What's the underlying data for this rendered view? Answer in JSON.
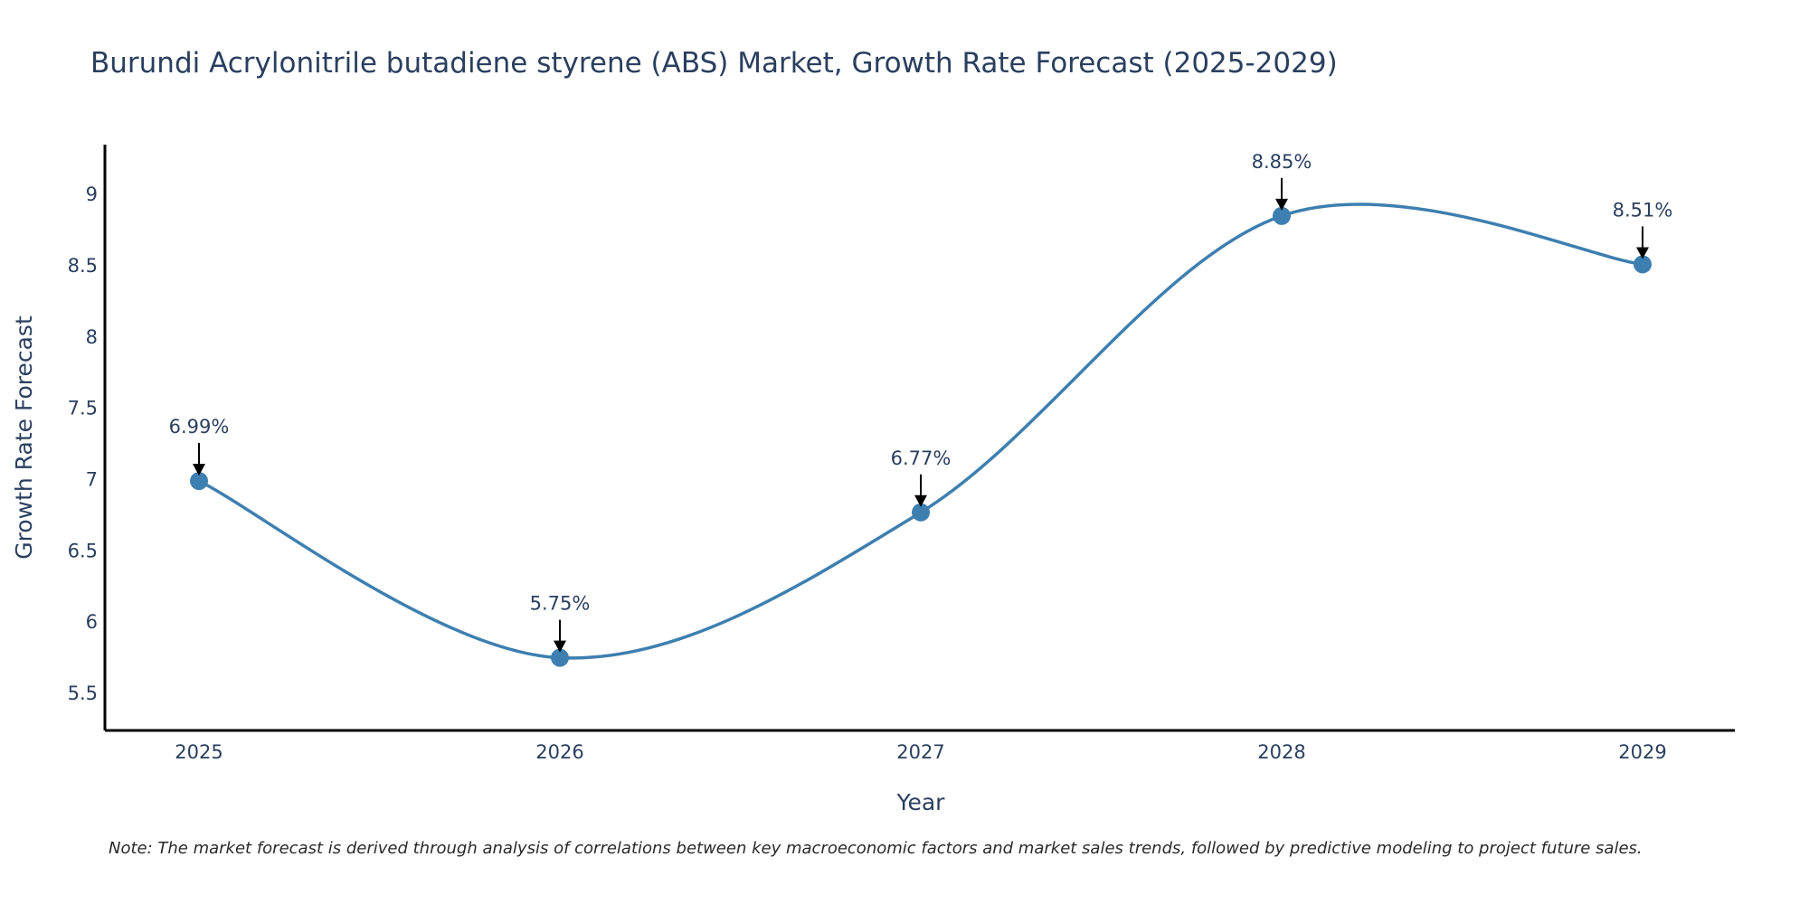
{
  "chart_data": {
    "type": "line",
    "title": "Burundi Acrylonitrile butadiene styrene (ABS) Market, Growth Rate Forecast (2025-2029)",
    "xlabel": "Year",
    "ylabel": "Growth Rate Forecast",
    "categories": [
      "2025",
      "2026",
      "2027",
      "2028",
      "2029"
    ],
    "values": [
      6.99,
      5.75,
      6.77,
      8.85,
      8.51
    ],
    "annotations": [
      "6.99%",
      "5.75%",
      "6.77%",
      "8.85%",
      "8.51%"
    ],
    "y_ticks": [
      "5.5",
      "6",
      "6.5",
      "7",
      "7.5",
      "8",
      "8.5",
      "9"
    ],
    "ylim": [
      5.24,
      9.35
    ],
    "line_color": "#3d7fb0",
    "marker_color": "#3d7fb0",
    "axis_color": "#000000",
    "smoothing": "spline",
    "note": "Note: The market forecast is derived through analysis of correlations between key macroeconomic factors and market sales trends, followed by predictive modeling to project future sales."
  }
}
